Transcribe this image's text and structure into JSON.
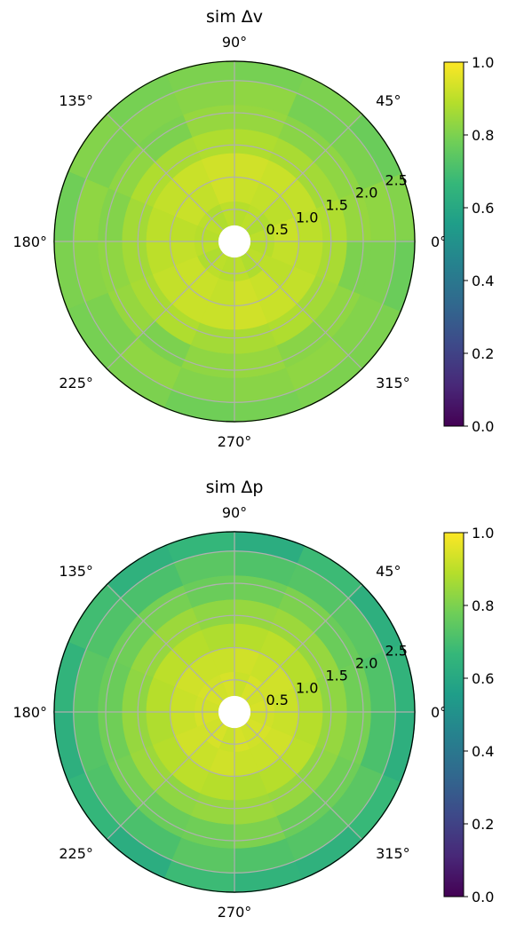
{
  "chart_data": [
    {
      "type": "polar_heatmap",
      "title": "sim Δv",
      "angle_ticks": [
        "0°",
        "45°",
        "90°",
        "135°",
        "180°",
        "225°",
        "270°",
        "315°"
      ],
      "radial_ticks": [
        "0.5",
        "1.0",
        "1.5",
        "2.0",
        "2.5"
      ],
      "r_range": [
        0,
        2.8
      ],
      "theta_bins": 16,
      "r_edges": [
        0.25,
        0.625,
        1.0,
        1.375,
        1.75,
        2.125,
        2.5,
        2.875
      ],
      "grid": true,
      "colormap": "viridis",
      "colorbar": {
        "range": [
          0.0,
          1.0
        ],
        "ticks": [
          "0.0",
          "0.2",
          "0.4",
          "0.6",
          "0.8",
          "1.0"
        ]
      },
      "values": [
        [
          0.9,
          0.88,
          0.9,
          0.89,
          0.9,
          0.88,
          0.9,
          0.89,
          0.9,
          0.88,
          0.9,
          0.89,
          0.9,
          0.88,
          0.9,
          0.89
        ],
        [
          0.92,
          0.9,
          0.91,
          0.92,
          0.93,
          0.91,
          0.92,
          0.9,
          0.91,
          0.92,
          0.92,
          0.91,
          0.93,
          0.92,
          0.9,
          0.91
        ],
        [
          0.9,
          0.91,
          0.92,
          0.93,
          0.93,
          0.92,
          0.91,
          0.9,
          0.9,
          0.91,
          0.92,
          0.92,
          0.93,
          0.92,
          0.91,
          0.9
        ],
        [
          0.88,
          0.86,
          0.87,
          0.88,
          0.88,
          0.87,
          0.88,
          0.86,
          0.86,
          0.87,
          0.88,
          0.86,
          0.87,
          0.88,
          0.86,
          0.87
        ],
        [
          0.84,
          0.83,
          0.82,
          0.84,
          0.84,
          0.8,
          0.83,
          0.81,
          0.83,
          0.84,
          0.8,
          0.83,
          0.84,
          0.82,
          0.83,
          0.8
        ],
        [
          0.83,
          0.8,
          0.79,
          0.83,
          0.82,
          0.81,
          0.8,
          0.83,
          0.82,
          0.8,
          0.83,
          0.81,
          0.82,
          0.83,
          0.81,
          0.8
        ],
        [
          0.81,
          0.77,
          0.8,
          0.79,
          0.8,
          0.79,
          0.81,
          0.78,
          0.8,
          0.79,
          0.8,
          0.78,
          0.79,
          0.8,
          0.8,
          0.77
        ]
      ]
    },
    {
      "type": "polar_heatmap",
      "title": "sim Δp",
      "angle_ticks": [
        "0°",
        "45°",
        "90°",
        "135°",
        "180°",
        "225°",
        "270°",
        "315°"
      ],
      "radial_ticks": [
        "0.5",
        "1.0",
        "1.5",
        "2.0",
        "2.5"
      ],
      "r_range": [
        0,
        2.8
      ],
      "theta_bins": 16,
      "r_edges": [
        0.25,
        0.625,
        1.0,
        1.375,
        1.75,
        2.125,
        2.5,
        2.875
      ],
      "grid": true,
      "colormap": "viridis",
      "colorbar": {
        "range": [
          0.0,
          1.0
        ],
        "ticks": [
          "0.0",
          "0.2",
          "0.4",
          "0.6",
          "0.8",
          "1.0"
        ]
      },
      "values": [
        [
          0.94,
          0.93,
          0.94,
          0.92,
          0.94,
          0.93,
          0.94,
          0.93,
          0.94,
          0.93,
          0.94,
          0.92,
          0.94,
          0.93,
          0.94,
          0.93
        ],
        [
          0.92,
          0.93,
          0.92,
          0.93,
          0.92,
          0.92,
          0.93,
          0.92,
          0.92,
          0.93,
          0.92,
          0.93,
          0.92,
          0.92,
          0.93,
          0.92
        ],
        [
          0.88,
          0.89,
          0.9,
          0.89,
          0.88,
          0.89,
          0.9,
          0.89,
          0.88,
          0.89,
          0.9,
          0.89,
          0.88,
          0.89,
          0.9,
          0.89
        ],
        [
          0.83,
          0.84,
          0.85,
          0.84,
          0.83,
          0.85,
          0.84,
          0.83,
          0.84,
          0.85,
          0.83,
          0.84,
          0.85,
          0.84,
          0.83,
          0.84
        ],
        [
          0.78,
          0.77,
          0.8,
          0.78,
          0.77,
          0.79,
          0.78,
          0.77,
          0.78,
          0.79,
          0.77,
          0.78,
          0.8,
          0.77,
          0.78,
          0.79
        ],
        [
          0.72,
          0.74,
          0.73,
          0.72,
          0.74,
          0.71,
          0.72,
          0.74,
          0.73,
          0.72,
          0.71,
          0.74,
          0.72,
          0.73,
          0.74,
          0.71
        ],
        [
          0.65,
          0.63,
          0.68,
          0.62,
          0.66,
          0.64,
          0.69,
          0.65,
          0.63,
          0.66,
          0.62,
          0.68,
          0.65,
          0.64,
          0.67,
          0.63
        ]
      ]
    }
  ]
}
